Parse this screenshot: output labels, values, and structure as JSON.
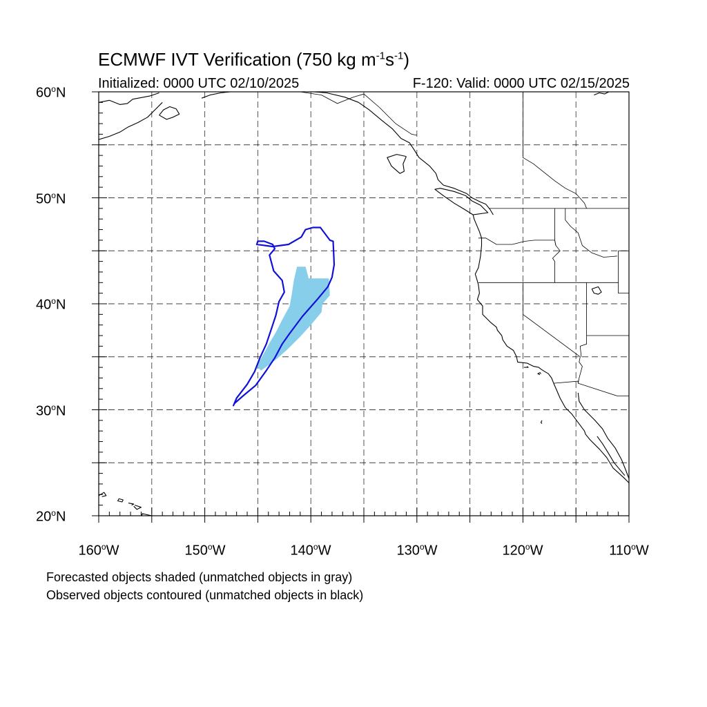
{
  "title": {
    "main": "ECMWF IVT Verification (750 kg m",
    "exp1": "-1",
    "mid": "s",
    "exp2": "-1",
    "end": ")"
  },
  "subtitle_left": "Initialized: 0000 UTC 02/10/2025",
  "subtitle_right": "F-120: Valid: 0000 UTC 02/15/2025",
  "lat_labels": [
    {
      "deg": "60",
      "hemi": "N"
    },
    {
      "deg": "50",
      "hemi": "N"
    },
    {
      "deg": "40",
      "hemi": "N"
    },
    {
      "deg": "30",
      "hemi": "N"
    },
    {
      "deg": "20",
      "hemi": "N"
    }
  ],
  "lon_labels": [
    {
      "deg": "160",
      "hemi": "W"
    },
    {
      "deg": "150",
      "hemi": "W"
    },
    {
      "deg": "140",
      "hemi": "W"
    },
    {
      "deg": "130",
      "hemi": "W"
    },
    {
      "deg": "120",
      "hemi": "W"
    },
    {
      "deg": "110",
      "hemi": "W"
    }
  ],
  "notes": [
    "Forecasted objects shaded (unmatched objects in gray)",
    "Observed objects contoured (unmatched objects in black)"
  ],
  "extent": {
    "lon_min": -160,
    "lon_max": -110,
    "lat_min": 20,
    "lat_max": 60
  },
  "colors": {
    "forecast_object": "#87ceeb",
    "observed_contour": "#1010d8",
    "grid": "#000000",
    "coastline": "#000000"
  },
  "forecast_object": [
    [
      -141.3,
      43.5
    ],
    [
      -140.5,
      43.5
    ],
    [
      -140.2,
      42.4
    ],
    [
      -138.3,
      42.4
    ],
    [
      -138.2,
      40.8
    ],
    [
      -138.9,
      40.0
    ],
    [
      -139.0,
      39.2
    ],
    [
      -140.0,
      38.0
    ],
    [
      -141.0,
      36.9
    ],
    [
      -142.2,
      35.7
    ],
    [
      -143.2,
      34.8
    ],
    [
      -144.0,
      34.2
    ],
    [
      -144.7,
      33.7
    ],
    [
      -145.1,
      34.1
    ],
    [
      -144.5,
      35.2
    ],
    [
      -143.9,
      36.3
    ],
    [
      -143.3,
      37.3
    ],
    [
      -142.8,
      38.3
    ],
    [
      -142.0,
      39.8
    ],
    [
      -141.8,
      40.9
    ],
    [
      -141.6,
      42.2
    ]
  ],
  "observed_object": [
    [
      -139.1,
      47.2
    ],
    [
      -138.2,
      46.0
    ],
    [
      -137.9,
      45.9
    ],
    [
      -137.8,
      43.7
    ],
    [
      -138.0,
      42.5
    ],
    [
      -138.4,
      41.6
    ],
    [
      -139.4,
      40.4
    ],
    [
      -140.8,
      38.8
    ],
    [
      -142.0,
      37.2
    ],
    [
      -142.7,
      36.2
    ],
    [
      -143.4,
      34.9
    ],
    [
      -144.2,
      33.7
    ],
    [
      -145.2,
      32.3
    ],
    [
      -146.4,
      31.3
    ],
    [
      -147.2,
      30.6
    ],
    [
      -147.3,
      30.4
    ],
    [
      -147.0,
      31.1
    ],
    [
      -146.0,
      32.4
    ],
    [
      -145.3,
      33.6
    ],
    [
      -144.8,
      34.9
    ],
    [
      -144.2,
      36.2
    ],
    [
      -143.7,
      37.7
    ],
    [
      -143.3,
      38.9
    ],
    [
      -143.0,
      40.2
    ],
    [
      -142.5,
      41.1
    ],
    [
      -142.7,
      42.2
    ],
    [
      -143.5,
      43.1
    ],
    [
      -143.9,
      44.6
    ],
    [
      -143.4,
      45.2
    ],
    [
      -143.6,
      45.6
    ],
    [
      -144.4,
      45.9
    ],
    [
      -145.0,
      45.9
    ],
    [
      -145.1,
      45.6
    ],
    [
      -144.3,
      45.5
    ],
    [
      -143.6,
      45.4
    ],
    [
      -142.1,
      45.6
    ],
    [
      -140.9,
      46.3
    ],
    [
      -140.5,
      47.0
    ],
    [
      -139.8,
      47.2
    ]
  ],
  "coastlines": [
    [
      [
        -117.1,
        32.5
      ],
      [
        -117.3,
        33.0
      ],
      [
        -117.6,
        33.4
      ],
      [
        -118.1,
        33.7
      ],
      [
        -118.4,
        33.9
      ],
      [
        -118.5,
        34.0
      ],
      [
        -119.0,
        34.1
      ],
      [
        -119.6,
        34.4
      ],
      [
        -120.5,
        34.5
      ],
      [
        -120.6,
        35.0
      ],
      [
        -120.9,
        35.6
      ],
      [
        -121.5,
        36.0
      ],
      [
        -121.9,
        36.6
      ],
      [
        -122.0,
        37.0
      ],
      [
        -122.4,
        37.5
      ],
      [
        -122.5,
        37.8
      ],
      [
        -123.0,
        38.2
      ],
      [
        -123.8,
        39.0
      ],
      [
        -123.8,
        39.8
      ],
      [
        -124.3,
        40.4
      ],
      [
        -124.1,
        41.0
      ],
      [
        -124.2,
        41.8
      ],
      [
        -124.4,
        42.5
      ],
      [
        -124.5,
        42.8
      ],
      [
        -124.2,
        43.4
      ],
      [
        -124.0,
        44.5
      ],
      [
        -123.9,
        45.5
      ],
      [
        -123.9,
        46.2
      ],
      [
        -124.1,
        46.8
      ],
      [
        -124.6,
        48.0
      ],
      [
        -124.7,
        48.4
      ]
    ],
    [
      [
        -122.8,
        48.4
      ],
      [
        -123.1,
        48.9
      ],
      [
        -123.5,
        49.4
      ],
      [
        -124.0,
        49.6
      ],
      [
        -124.8,
        50.0
      ],
      [
        -125.3,
        50.4
      ],
      [
        -126.5,
        50.9
      ],
      [
        -127.5,
        51.2
      ],
      [
        -128.0,
        51.7
      ],
      [
        -128.2,
        52.3
      ],
      [
        -128.8,
        53.0
      ],
      [
        -129.8,
        53.8
      ],
      [
        -130.3,
        54.6
      ],
      [
        -130.7,
        55.2
      ],
      [
        -131.5,
        55.6
      ],
      [
        -132.3,
        56.5
      ],
      [
        -133.3,
        57.3
      ],
      [
        -134.5,
        58.3
      ],
      [
        -135.5,
        59.0
      ],
      [
        -136.8,
        59.5
      ],
      [
        -138.5,
        59.9
      ],
      [
        -139.7,
        60.0
      ]
    ],
    [
      [
        -124.7,
        48.4
      ],
      [
        -125.5,
        48.9
      ],
      [
        -126.5,
        49.5
      ],
      [
        -127.5,
        50.2
      ],
      [
        -128.3,
        50.8
      ],
      [
        -127.8,
        50.9
      ],
      [
        -126.5,
        50.6
      ],
      [
        -125.4,
        50.2
      ],
      [
        -124.8,
        49.7
      ],
      [
        -124.0,
        49.3
      ],
      [
        -123.3,
        48.6
      ],
      [
        -124.7,
        48.4
      ]
    ],
    [
      [
        -131.0,
        53.9
      ],
      [
        -131.9,
        54.1
      ],
      [
        -132.8,
        53.8
      ],
      [
        -132.4,
        53.0
      ],
      [
        -131.6,
        52.3
      ],
      [
        -131.2,
        52.5
      ],
      [
        -131.3,
        53.2
      ],
      [
        -131.0,
        53.9
      ]
    ],
    [
      [
        -114.8,
        31.6
      ],
      [
        -114.7,
        30.8
      ],
      [
        -114.2,
        30.0
      ],
      [
        -113.2,
        29.0
      ],
      [
        -112.5,
        28.2
      ],
      [
        -112.0,
        27.3
      ],
      [
        -111.3,
        26.4
      ],
      [
        -110.7,
        25.3
      ],
      [
        -110.3,
        24.3
      ],
      [
        -110.0,
        23.5
      ],
      [
        -110.0,
        23.0
      ]
    ],
    [
      [
        -117.1,
        32.5
      ],
      [
        -116.8,
        31.8
      ],
      [
        -116.5,
        31.1
      ],
      [
        -116.0,
        30.2
      ],
      [
        -115.4,
        29.6
      ],
      [
        -114.8,
        28.8
      ],
      [
        -114.2,
        28.0
      ],
      [
        -114.1,
        27.7
      ],
      [
        -113.7,
        27.2
      ],
      [
        -112.8,
        26.3
      ],
      [
        -112.1,
        25.5
      ],
      [
        -111.5,
        24.5
      ],
      [
        -110.5,
        23.6
      ],
      [
        -110.0,
        23.1
      ]
    ],
    [
      [
        -113.0,
        27.5
      ],
      [
        -112.5,
        26.8
      ],
      [
        -112.0,
        26.0
      ],
      [
        -111.4,
        25.0
      ],
      [
        -110.4,
        23.8
      ]
    ],
    [
      [
        -160.0,
        55.5
      ],
      [
        -159.0,
        55.8
      ],
      [
        -158.0,
        56.2
      ],
      [
        -157.2,
        56.7
      ],
      [
        -156.3,
        57.1
      ],
      [
        -155.4,
        57.6
      ],
      [
        -154.7,
        58.3
      ],
      [
        -154.0,
        59.0
      ]
    ],
    [
      [
        -154.3,
        57.8
      ],
      [
        -153.6,
        57.4
      ],
      [
        -153.0,
        57.6
      ],
      [
        -152.4,
        57.9
      ],
      [
        -152.7,
        58.4
      ],
      [
        -153.3,
        58.6
      ],
      [
        -153.9,
        58.3
      ],
      [
        -154.3,
        57.8
      ]
    ],
    [
      [
        -160.0,
        59.0
      ],
      [
        -159.0,
        59.2
      ],
      [
        -158.0,
        58.8
      ],
      [
        -157.3,
        58.9
      ],
      [
        -156.8,
        59.3
      ],
      [
        -155.2,
        59.6
      ],
      [
        -154.3,
        59.9
      ]
    ],
    [
      [
        -150.3,
        59.4
      ],
      [
        -149.5,
        59.7
      ],
      [
        -148.5,
        59.9
      ],
      [
        -147.6,
        60.0
      ]
    ],
    [
      [
        -113.3,
        59.7
      ],
      [
        -112.8,
        59.9
      ],
      [
        -112.3,
        59.8
      ],
      [
        -111.9,
        60.0
      ],
      [
        -110.0,
        60.0
      ]
    ],
    [
      [
        -118.4,
        33.3
      ],
      [
        -118.6,
        33.4
      ],
      [
        -118.4,
        33.5
      ],
      [
        -118.3,
        33.4
      ]
    ],
    [
      [
        -119.9,
        34.0
      ],
      [
        -119.5,
        34.0
      ],
      [
        -119.6,
        34.1
      ]
    ],
    [
      [
        -118.2,
        29.0
      ],
      [
        -118.3,
        28.8
      ],
      [
        -118.2,
        28.7
      ]
    ],
    [
      [
        -113.5,
        41.4
      ],
      [
        -112.9,
        41.6
      ],
      [
        -112.6,
        41.1
      ],
      [
        -112.9,
        40.9
      ],
      [
        -113.3,
        41.0
      ],
      [
        -113.5,
        41.4
      ]
    ],
    [
      [
        -160.0,
        21.9
      ],
      [
        -159.5,
        22.2
      ],
      [
        -159.3,
        21.9
      ],
      [
        -159.7,
        21.8
      ]
    ],
    [
      [
        -158.1,
        21.6
      ],
      [
        -157.7,
        21.5
      ],
      [
        -157.8,
        21.3
      ],
      [
        -158.2,
        21.4
      ],
      [
        -158.1,
        21.6
      ]
    ],
    [
      [
        -157.2,
        21.2
      ],
      [
        -156.7,
        21.1
      ],
      [
        -156.9,
        21.0
      ]
    ],
    [
      [
        -156.6,
        21.0
      ],
      [
        -156.0,
        20.8
      ],
      [
        -156.4,
        20.6
      ],
      [
        -156.7,
        20.9
      ]
    ],
    [
      [
        -155.9,
        20.2
      ],
      [
        -155.0,
        20.0
      ],
      [
        -154.8,
        19.5
      ],
      [
        -155.6,
        19.0
      ],
      [
        -156.0,
        19.6
      ],
      [
        -155.9,
        20.2
      ]
    ]
  ],
  "boundaries": [
    [
      [
        -123.2,
        49.0
      ],
      [
        -110.0,
        49.0
      ]
    ],
    [
      [
        -124.2,
        46.2
      ],
      [
        -123.5,
        46.2
      ],
      [
        -122.5,
        45.6
      ],
      [
        -121.0,
        45.6
      ],
      [
        -119.8,
        45.9
      ],
      [
        -118.9,
        46.0
      ],
      [
        -117.0,
        46.0
      ],
      [
        -116.9,
        45.5
      ]
    ],
    [
      [
        -124.2,
        42.0
      ],
      [
        -111.0,
        42.0
      ]
    ],
    [
      [
        -120.0,
        42.0
      ],
      [
        -120.0,
        39.0
      ],
      [
        -114.6,
        35.0
      ]
    ],
    [
      [
        -117.0,
        49.0
      ],
      [
        -117.0,
        46.0
      ],
      [
        -116.9,
        45.5
      ],
      [
        -116.5,
        45.0
      ],
      [
        -117.2,
        44.3
      ],
      [
        -117.0,
        44.0
      ],
      [
        -117.0,
        42.0
      ]
    ],
    [
      [
        -116.0,
        49.0
      ],
      [
        -116.0,
        47.9
      ],
      [
        -115.5,
        47.3
      ],
      [
        -114.8,
        46.7
      ],
      [
        -114.4,
        45.5
      ],
      [
        -113.5,
        44.8
      ],
      [
        -113.2,
        44.7
      ],
      [
        -112.4,
        44.4
      ],
      [
        -111.1,
        44.5
      ]
    ],
    [
      [
        -111.0,
        45.0
      ],
      [
        -110.0,
        45.0
      ]
    ],
    [
      [
        -111.0,
        45.0
      ],
      [
        -111.0,
        41.0
      ],
      [
        -110.0,
        41.0
      ]
    ],
    [
      [
        -114.0,
        42.0
      ],
      [
        -114.0,
        36.2
      ],
      [
        -114.6,
        36.0
      ],
      [
        -114.5,
        35.0
      ]
    ],
    [
      [
        -114.0,
        37.0
      ],
      [
        -110.0,
        37.0
      ]
    ],
    [
      [
        -114.6,
        35.0
      ],
      [
        -114.7,
        34.5
      ],
      [
        -114.4,
        34.1
      ],
      [
        -114.7,
        33.0
      ],
      [
        -114.8,
        32.5
      ]
    ],
    [
      [
        -117.1,
        32.5
      ],
      [
        -114.8,
        32.7
      ],
      [
        -114.8,
        32.5
      ],
      [
        -111.1,
        31.3
      ],
      [
        -110.0,
        31.3
      ]
    ],
    [
      [
        -120.0,
        60.0
      ],
      [
        -120.0,
        53.8
      ],
      [
        -119.0,
        53.2
      ],
      [
        -118.0,
        52.4
      ],
      [
        -117.0,
        51.6
      ],
      [
        -116.0,
        50.9
      ],
      [
        -115.0,
        50.4
      ],
      [
        -114.2,
        49.5
      ],
      [
        -114.0,
        49.0
      ]
    ],
    [
      [
        -141.0,
        60.0
      ],
      [
        -139.0,
        59.7
      ],
      [
        -137.5,
        58.9
      ],
      [
        -136.0,
        59.5
      ],
      [
        -135.0,
        59.8
      ],
      [
        -133.5,
        58.5
      ],
      [
        -132.0,
        57.0
      ],
      [
        -130.5,
        56.0
      ],
      [
        -130.0,
        55.9
      ]
    ]
  ]
}
